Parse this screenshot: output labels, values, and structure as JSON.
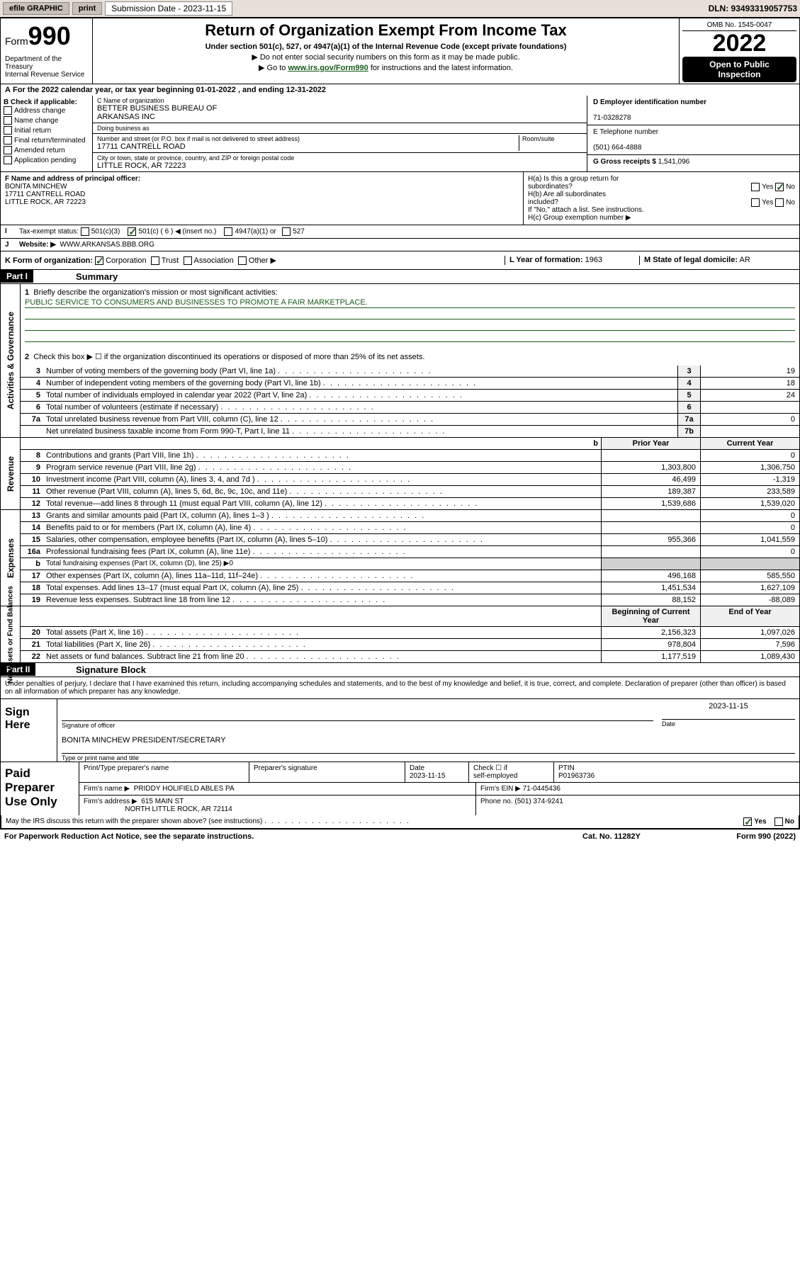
{
  "colors": {
    "bg": "#ffffff",
    "text": "#000000",
    "green": "#1a5a1a",
    "topbar_bg": "#e8e0d8",
    "btn_bg": "#c8c0b8",
    "box_bg": "#f0f0f0"
  },
  "topbar": {
    "efile": "efile GRAPHIC",
    "print": "print",
    "sub_label": "Submission Date - 2023-11-15",
    "dln": "DLN: 93493319057753"
  },
  "header": {
    "form_prefix": "Form",
    "form_num": "990",
    "title": "Return of Organization Exempt From Income Tax",
    "sub1": "Under section 501(c), 527, or 4947(a)(1) of the Internal Revenue Code (except private foundations)",
    "sub2": "▶ Do not enter social security numbers on this form as it may be made public.",
    "sub3_pre": "▶ Go to ",
    "sub3_link": "www.irs.gov/Form990",
    "sub3_post": " for instructions and the latest information.",
    "dept": "Department of the Treasury\nInternal Revenue Service",
    "omb": "OMB No. 1545-0047",
    "year": "2022",
    "open_pub": "Open to Public\nInspection"
  },
  "cal_year": "For the 2022 calendar year, or tax year beginning 01-01-2022   , and ending 12-31-2022",
  "sectB": {
    "hdr": "B Check if applicable:",
    "items": [
      "Address change",
      "Name change",
      "Initial return",
      "Final return/terminated",
      "Amended return",
      "Application pending"
    ],
    "c_lbl": "C Name of organization",
    "c_name": "BETTER BUSINESS BUREAU OF\nARKANSAS INC",
    "dba_lbl": "Doing business as",
    "addr_lbl": "Number and street (or P.O. box if mail is not delivered to street address)",
    "room_lbl": "Room/suite",
    "addr": "17711 CANTRELL ROAD",
    "city_lbl": "City or town, state or province, country, and ZIP or foreign postal code",
    "city": "LITTLE ROCK, AR  72223",
    "d_lbl": "D Employer identification number",
    "d_val": "71-0328278",
    "e_lbl": "E Telephone number",
    "e_val": "(501) 664-4888",
    "g_lbl": "G Gross receipts $",
    "g_val": "1,541,096"
  },
  "rowF": {
    "f_lbl": "F  Name and address of principal officer:",
    "f_name": "BONITA MINCHEW",
    "f_addr1": "17711 CANTRELL ROAD",
    "f_addr2": "LITTLE ROCK, AR  72223",
    "ha": "H(a)  Is this a group return for\n        subordinates?",
    "ha_yes": "Yes",
    "ha_no": "No",
    "hb": "H(b)  Are all subordinates\n        included?",
    "hb_note": "If \"No,\" attach a list. See instructions.",
    "hc": "H(c)  Group exemption number ▶"
  },
  "rowI": {
    "i_lbl": "Tax-exempt status:",
    "i_501c3": "501(c)(3)",
    "i_501c": "501(c) ( 6 ) ◀ (insert no.)",
    "i_4947": "4947(a)(1) or",
    "i_527": "527",
    "j_lbl": "Website: ▶",
    "j_val": "WWW.ARKANSAS.BBB.ORG"
  },
  "rowK": {
    "k_lbl": "K Form of organization:",
    "opts": [
      "Corporation",
      "Trust",
      "Association",
      "Other ▶"
    ],
    "l_lbl": "L Year of formation:",
    "l_val": "1963",
    "m_lbl": "M State of legal domicile:",
    "m_val": "AR"
  },
  "part1": {
    "label": "Part I",
    "title": "Summary",
    "q1": "Briefly describe the organization's mission or most significant activities:",
    "mission": "PUBLIC SERVICE TO CONSUMERS AND BUSINESSES TO PROMOTE A FAIR MARKETPLACE.",
    "q2": "Check this box ▶ ☐  if the organization discontinued its operations or disposed of more than 25% of its net assets.",
    "gov": {
      "side": "Activities & Governance",
      "lines": [
        {
          "n": "3",
          "d": "Number of voting members of the governing body (Part VI, line 1a)",
          "box": "3",
          "v": "19"
        },
        {
          "n": "4",
          "d": "Number of independent voting members of the governing body (Part VI, line 1b)",
          "box": "4",
          "v": "18"
        },
        {
          "n": "5",
          "d": "Total number of individuals employed in calendar year 2022 (Part V, line 2a)",
          "box": "5",
          "v": "24"
        },
        {
          "n": "6",
          "d": "Total number of volunteers (estimate if necessary)",
          "box": "6",
          "v": ""
        },
        {
          "n": "7a",
          "d": "Total unrelated business revenue from Part VIII, column (C), line 12",
          "box": "7a",
          "v": "0"
        },
        {
          "n": "",
          "d": "Net unrelated business taxable income from Form 990-T, Part I, line 11",
          "box": "7b",
          "v": ""
        }
      ]
    },
    "rev": {
      "side": "Revenue",
      "hdr_prior": "Prior Year",
      "hdr_cur": "Current Year",
      "lines": [
        {
          "n": "8",
          "d": "Contributions and grants (Part VIII, line 1h)",
          "p": "",
          "c": "0"
        },
        {
          "n": "9",
          "d": "Program service revenue (Part VIII, line 2g)",
          "p": "1,303,800",
          "c": "1,306,750"
        },
        {
          "n": "10",
          "d": "Investment income (Part VIII, column (A), lines 3, 4, and 7d )",
          "p": "46,499",
          "c": "-1,319"
        },
        {
          "n": "11",
          "d": "Other revenue (Part VIII, column (A), lines 5, 6d, 8c, 9c, 10c, and 11e)",
          "p": "189,387",
          "c": "233,589"
        },
        {
          "n": "12",
          "d": "Total revenue—add lines 8 through 11 (must equal Part VIII, column (A), line 12)",
          "p": "1,539,686",
          "c": "1,539,020"
        }
      ]
    },
    "exp": {
      "side": "Expenses",
      "lines": [
        {
          "n": "13",
          "d": "Grants and similar amounts paid (Part IX, column (A), lines 1–3 )",
          "p": "",
          "c": "0"
        },
        {
          "n": "14",
          "d": "Benefits paid to or for members (Part IX, column (A), line 4)",
          "p": "",
          "c": "0"
        },
        {
          "n": "15",
          "d": "Salaries, other compensation, employee benefits (Part IX, column (A), lines 5–10)",
          "p": "955,366",
          "c": "1,041,559"
        },
        {
          "n": "16a",
          "d": "Professional fundraising fees (Part IX, column (A), line 11e)",
          "p": "",
          "c": "0"
        },
        {
          "n": "b",
          "d": "Total fundraising expenses (Part IX, column (D), line 25) ▶0",
          "p": null,
          "c": null
        },
        {
          "n": "17",
          "d": "Other expenses (Part IX, column (A), lines 11a–11d, 11f–24e)",
          "p": "496,168",
          "c": "585,550"
        },
        {
          "n": "18",
          "d": "Total expenses. Add lines 13–17 (must equal Part IX, column (A), line 25)",
          "p": "1,451,534",
          "c": "1,627,109"
        },
        {
          "n": "19",
          "d": "Revenue less expenses. Subtract line 18 from line 12",
          "p": "88,152",
          "c": "-88,089"
        }
      ]
    },
    "net": {
      "side": "Net Assets or\nFund Balances",
      "hdr_beg": "Beginning of Current Year",
      "hdr_end": "End of Year",
      "lines": [
        {
          "n": "20",
          "d": "Total assets (Part X, line 16)",
          "p": "2,156,323",
          "c": "1,097,026"
        },
        {
          "n": "21",
          "d": "Total liabilities (Part X, line 26)",
          "p": "978,804",
          "c": "7,596"
        },
        {
          "n": "22",
          "d": "Net assets or fund balances. Subtract line 21 from line 20",
          "p": "1,177,519",
          "c": "1,089,430"
        }
      ]
    }
  },
  "part2": {
    "label": "Part II",
    "title": "Signature Block",
    "penalty": "Under penalties of perjury, I declare that I have examined this return, including accompanying schedules and statements, and to the best of my knowledge and belief, it is true, correct, and complete. Declaration of preparer (other than officer) is based on all information of which preparer has any knowledge.",
    "sign_here": "Sign\nHere",
    "sig_officer": "Signature of officer",
    "sig_date": "Date",
    "sig_date_val": "2023-11-15",
    "officer_name": "BONITA MINCHEW  PRESIDENT/SECRETARY",
    "officer_lbl": "Type or print name and title",
    "paid": "Paid\nPreparer\nUse Only",
    "prep_cols": [
      "Print/Type preparer's name",
      "Preparer's signature",
      "Date",
      "",
      "PTIN"
    ],
    "prep_date": "2023-11-15",
    "prep_check": "Check ☐ if\nself-employed",
    "ptin": "P01963736",
    "firm_name_lbl": "Firm's name    ▶",
    "firm_name": "PRIDDY HOLIFIELD ABLES PA",
    "firm_ein_lbl": "Firm's EIN ▶",
    "firm_ein": "71-0445436",
    "firm_addr_lbl": "Firm's address ▶",
    "firm_addr1": "615 MAIN ST",
    "firm_addr2": "NORTH LITTLE ROCK, AR  72114",
    "phone_lbl": "Phone no.",
    "phone": "(501) 374-9241",
    "discuss": "May the IRS discuss this return with the preparer shown above? (see instructions)",
    "yes": "Yes",
    "no": "No"
  },
  "footer": {
    "left": "For Paperwork Reduction Act Notice, see the separate instructions.",
    "mid": "Cat. No. 11282Y",
    "right": "Form 990 (2022)"
  }
}
